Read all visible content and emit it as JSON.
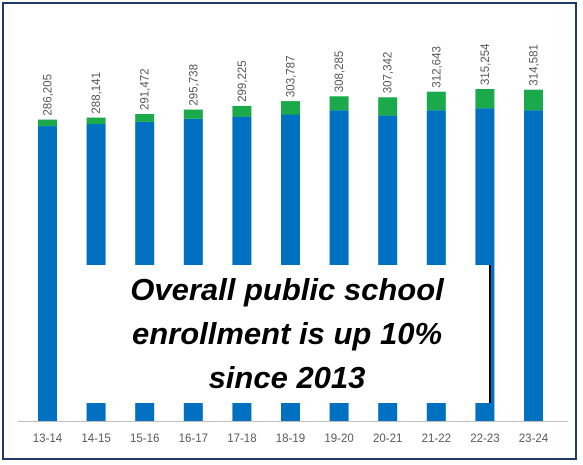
{
  "chart_data": {
    "type": "bar",
    "stacked": true,
    "categories": [
      "13-14",
      "14-15",
      "15-16",
      "16-17",
      "17-18",
      "18-19",
      "19-20",
      "20-21",
      "21-22",
      "22-23",
      "23-24"
    ],
    "series": [
      {
        "values": [
          280000,
          282000,
          284000,
          287000,
          289000,
          291000,
          295000,
          290000,
          295000,
          297000,
          295000
        ]
      },
      {
        "values": [
          6205,
          6141,
          7472,
          8738,
          10225,
          12787,
          13285,
          17342,
          17643,
          18254,
          19581
        ]
      }
    ],
    "totals": [
      286205,
      288141,
      291472,
      295738,
      299225,
      303787,
      308285,
      307342,
      312643,
      315254,
      314581
    ],
    "total_labels": [
      "286,205",
      "288,141",
      "291,472",
      "295,738",
      "299,225",
      "303,787",
      "308,285",
      "307,342",
      "312,643",
      "315,254",
      "314,581"
    ],
    "ylim": [
      0,
      350000
    ],
    "colors": {
      "series_0": "#0070c0",
      "series_1": "#1aaa4b",
      "axis": "#bfbfbf",
      "label": "#595959"
    },
    "grid": false,
    "legend": "none"
  },
  "callout": {
    "text": "Overall public school\nenrollment is up 10%\nsince 2013"
  }
}
